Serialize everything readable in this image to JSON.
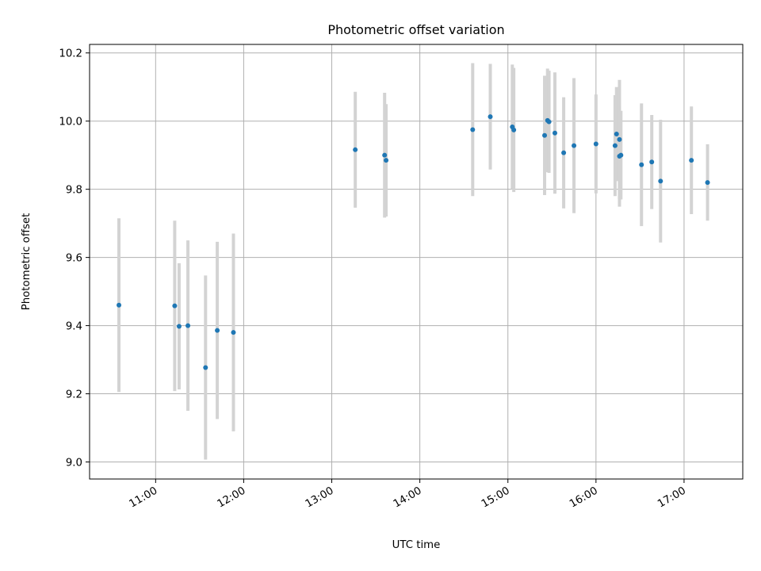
{
  "chart_data": {
    "type": "scatter",
    "title": "Photometric offset variation",
    "xlabel": "UTC time",
    "ylabel": "Photometric offset",
    "x_tick_labels": [
      "11:00",
      "12:00",
      "13:00",
      "14:00",
      "15:00",
      "16:00",
      "17:00"
    ],
    "y_tick_labels": [
      "9.0",
      "9.2",
      "9.4",
      "9.6",
      "9.8",
      "10.0",
      "10.2"
    ],
    "xlim": [
      "10:15",
      "17:40"
    ],
    "ylim": [
      8.95,
      10.225
    ],
    "grid": true,
    "colors": {
      "points": "#1f77b4",
      "errorbars": "#d3d3d3",
      "grid": "#b0b0b0"
    },
    "points": [
      {
        "t": "10:35",
        "y": 9.46,
        "err": 0.255
      },
      {
        "t": "11:13",
        "y": 9.458,
        "err": 0.25
      },
      {
        "t": "11:16",
        "y": 9.398,
        "err": 0.185
      },
      {
        "t": "11:22",
        "y": 9.4,
        "err": 0.25
      },
      {
        "t": "11:34",
        "y": 9.277,
        "err": 0.27
      },
      {
        "t": "11:42",
        "y": 9.386,
        "err": 0.26
      },
      {
        "t": "11:53",
        "y": 9.38,
        "err": 0.29
      },
      {
        "t": "13:16",
        "y": 9.916,
        "err": 0.17
      },
      {
        "t": "13:36",
        "y": 9.9,
        "err": 0.183
      },
      {
        "t": "13:37",
        "y": 9.885,
        "err": 0.165
      },
      {
        "t": "14:36",
        "y": 9.975,
        "err": 0.195
      },
      {
        "t": "14:48",
        "y": 10.013,
        "err": 0.155
      },
      {
        "t": "15:03",
        "y": 9.983,
        "err": 0.183
      },
      {
        "t": "15:04",
        "y": 9.974,
        "err": 0.182
      },
      {
        "t": "15:25",
        "y": 9.958,
        "err": 0.175
      },
      {
        "t": "15:27",
        "y": 10.002,
        "err": 0.152
      },
      {
        "t": "15:28",
        "y": 9.998,
        "err": 0.15
      },
      {
        "t": "15:32",
        "y": 9.965,
        "err": 0.178
      },
      {
        "t": "15:38",
        "y": 9.907,
        "err": 0.163
      },
      {
        "t": "15:45",
        "y": 9.928,
        "err": 0.198
      },
      {
        "t": "16:00",
        "y": 9.933,
        "err": 0.145
      },
      {
        "t": "16:13",
        "y": 9.928,
        "err": 0.148
      },
      {
        "t": "16:14",
        "y": 9.962,
        "err": 0.138
      },
      {
        "t": "16:16",
        "y": 9.897,
        "err": 0.148
      },
      {
        "t": "16:16",
        "y": 9.946,
        "err": 0.175
      },
      {
        "t": "16:17",
        "y": 9.9,
        "err": 0.13
      },
      {
        "t": "16:31",
        "y": 9.872,
        "err": 0.18
      },
      {
        "t": "16:38",
        "y": 9.88,
        "err": 0.138
      },
      {
        "t": "16:44",
        "y": 9.824,
        "err": 0.18
      },
      {
        "t": "17:05",
        "y": 9.885,
        "err": 0.158
      },
      {
        "t": "17:16",
        "y": 9.82,
        "err": 0.112
      }
    ]
  }
}
